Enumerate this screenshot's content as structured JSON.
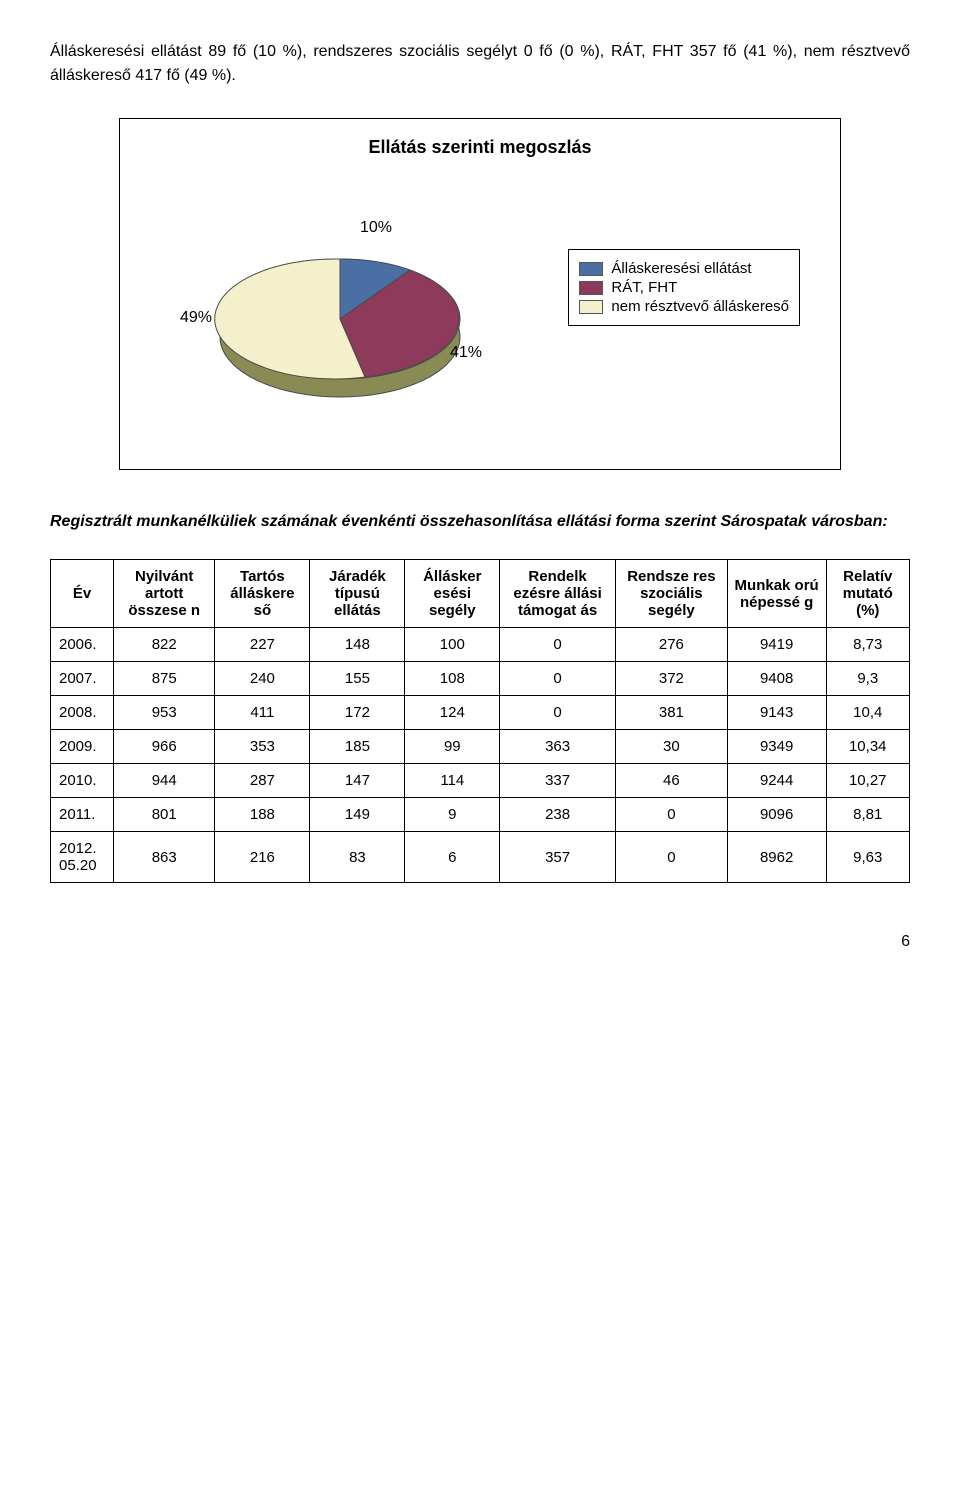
{
  "intro": "Álláskeresési ellátást 89 fő (10 %), rendszeres szociális segélyt 0 fő (0 %), RÁT, FHT 357 fő (41 %), nem résztvevő álláskereső 417 fő (49 %).",
  "chart": {
    "title": "Ellátás szerinti megoszlás",
    "type": "pie",
    "slices": [
      {
        "label": "Álláskeresési ellátást",
        "value": 10,
        "display": "10%",
        "color": "#4a6fa5"
      },
      {
        "label": "RÁT, FHT",
        "value": 41,
        "display": "41%",
        "color": "#8e3a5a"
      },
      {
        "label": "nem résztvevő álláskereső",
        "value": 49,
        "display": "49%",
        "color": "#f5f0cc"
      }
    ],
    "side_color": "#8a8a55",
    "outline_color": "#4a4a4a",
    "legend_border": "#000000"
  },
  "section_heading": "Regisztrált munkanélküliek számának évenkénti összehasonlítása ellátási forma szerint Sárospatak városban:",
  "table": {
    "columns": [
      "Év",
      "Nyilvánt artott összese n",
      "Tartós álláskere ső",
      "Járadék típusú ellátás",
      "Állásker esési segély",
      "Rendelk ezésre állási támogat ás",
      "Rendsze res szociális segély",
      "Munkak orú népessé g",
      "Relatív mutató (%)"
    ],
    "rows": [
      [
        "2006.",
        "822",
        "227",
        "148",
        "100",
        "0",
        "276",
        "9419",
        "8,73"
      ],
      [
        "2007.",
        "875",
        "240",
        "155",
        "108",
        "0",
        "372",
        "9408",
        "9,3"
      ],
      [
        "2008.",
        "953",
        "411",
        "172",
        "124",
        "0",
        "381",
        "9143",
        "10,4"
      ],
      [
        "2009.",
        "966",
        "353",
        "185",
        "99",
        "363",
        "30",
        "9349",
        "10,34"
      ],
      [
        "2010.",
        "944",
        "287",
        "147",
        "114",
        "337",
        "46",
        "9244",
        "10,27"
      ],
      [
        "2011.",
        "801",
        "188",
        "149",
        "9",
        "238",
        "0",
        "9096",
        "8,81"
      ],
      [
        "2012. 05.20",
        "863",
        "216",
        "83",
        "6",
        "357",
        "0",
        "8962",
        "9,63"
      ]
    ]
  },
  "page_number": "6"
}
